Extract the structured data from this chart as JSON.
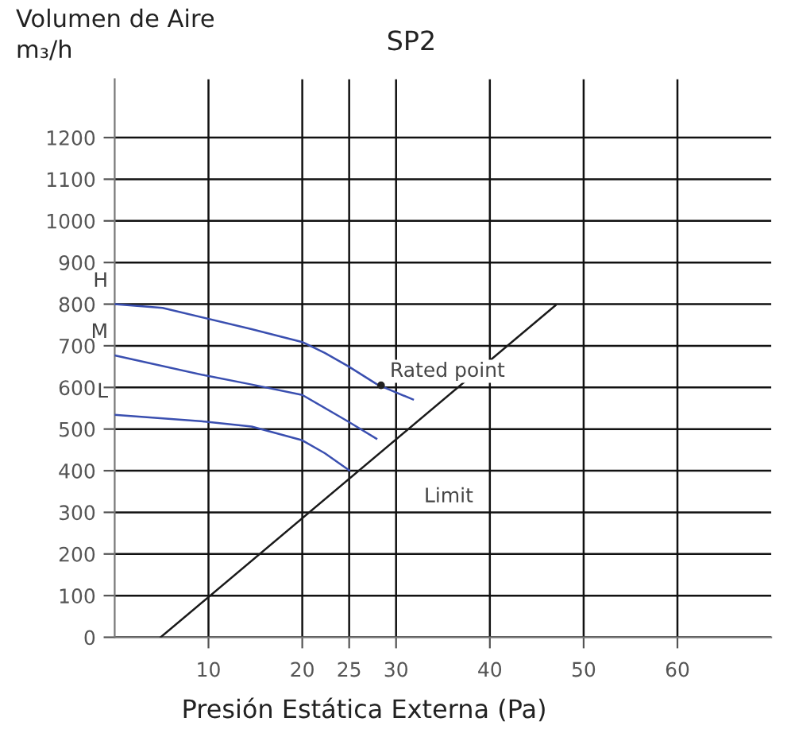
{
  "chart_data": {
    "type": "line",
    "title": "SP2",
    "ylabel": "Volumen de Aire\nm₃/h",
    "xlabel": "Presión Estática Externa (Pa)",
    "xlim": [
      0,
      70
    ],
    "ylim": [
      0,
      1340
    ],
    "xticks": [
      10,
      20,
      25,
      30,
      40,
      50,
      60
    ],
    "yticks": [
      0,
      100,
      200,
      300,
      400,
      500,
      600,
      700,
      800,
      900,
      1000,
      1100,
      1200
    ],
    "grid": true,
    "legend": false,
    "marker": "none",
    "line_style": "solid",
    "series": [
      {
        "name": "H",
        "color": "#3a4fb0",
        "x": [
          0,
          5.1,
          14.6,
          20,
          22.4,
          24.9,
          28,
          31.8
        ],
        "values": [
          800,
          791,
          740,
          709,
          683,
          651,
          607,
          571
        ]
      },
      {
        "name": "M",
        "color": "#3a4fb0",
        "x": [
          0,
          9.6,
          14.6,
          20,
          24.9,
          27.9
        ],
        "values": [
          677,
          629,
          607,
          582,
          518,
          477
        ]
      },
      {
        "name": "L",
        "color": "#3a4fb0",
        "x": [
          0,
          9.6,
          14.6,
          20,
          22.4,
          25
        ],
        "values": [
          534,
          518,
          506,
          473,
          442,
          401
        ]
      },
      {
        "name": "Limit",
        "color": "#1a1a1a",
        "x": [
          4.9,
          47
        ],
        "values": [
          0,
          797
        ]
      }
    ],
    "annotations": [
      {
        "text": "Rated point",
        "x": 28.4,
        "y": 605
      }
    ]
  }
}
